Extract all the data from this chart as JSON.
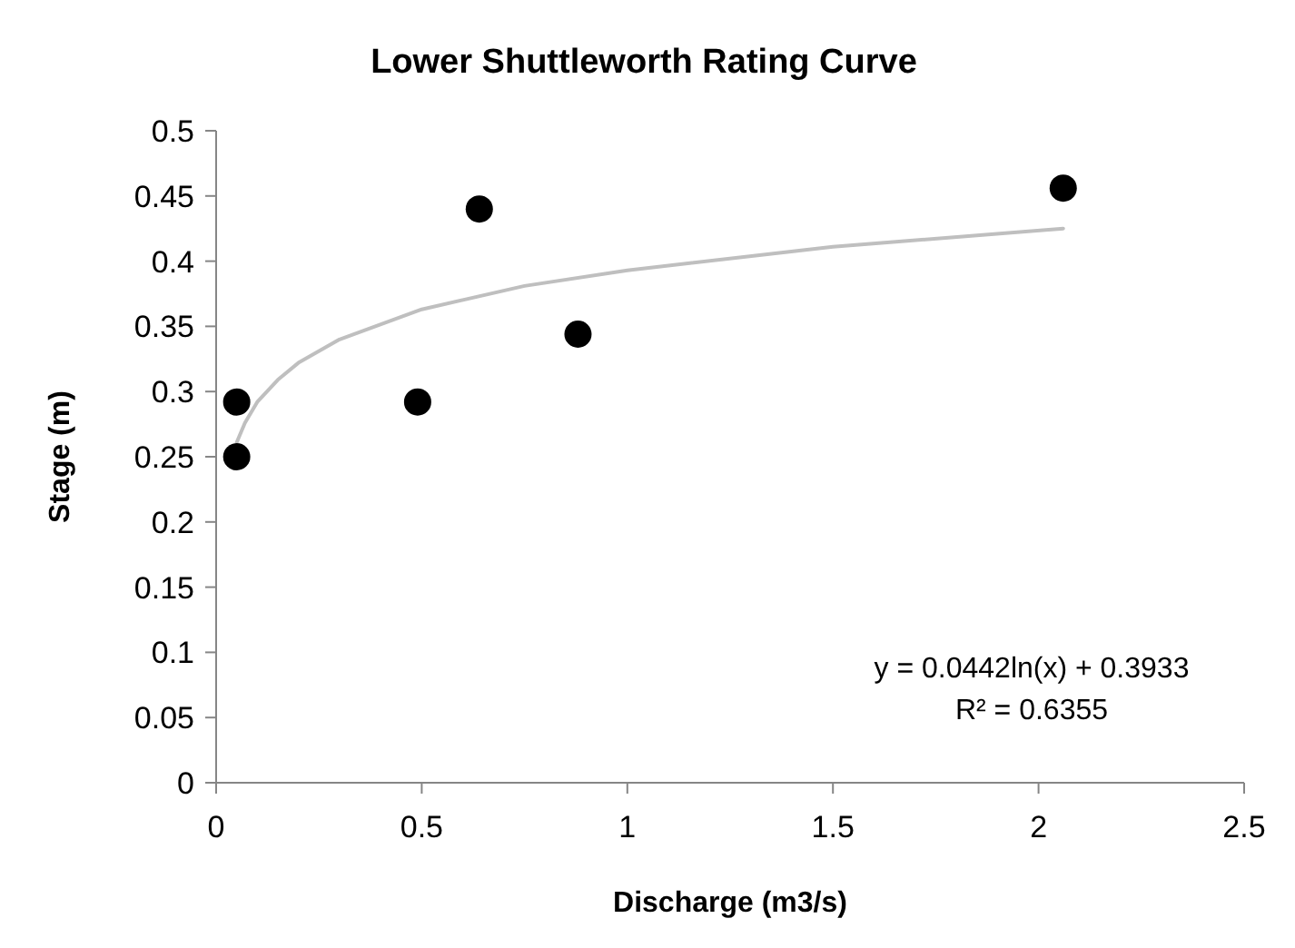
{
  "chart_data": {
    "type": "scatter",
    "title": "Lower Shuttleworth Rating Curve",
    "xlabel": "Discharge (m3/s)",
    "ylabel": "Stage (m)",
    "xlim": [
      0,
      2.5
    ],
    "xticks": [
      0,
      0.5,
      1,
      1.5,
      2,
      2.5
    ],
    "ylim": [
      0,
      0.5
    ],
    "yticks": [
      0,
      0.05,
      0.1,
      0.15,
      0.2,
      0.25,
      0.3,
      0.35,
      0.4,
      0.45,
      0.5
    ],
    "grid": false,
    "marker": "circle",
    "series": [
      {
        "color": "#000000",
        "x": [
          0.05,
          0.05,
          0.49,
          0.64,
          0.88,
          2.06
        ],
        "values": [
          0.292,
          0.25,
          0.292,
          0.44,
          0.344,
          0.456
        ]
      },
      {
        "type": "line",
        "color": "#bfbfbf",
        "marker": "none",
        "x": [
          0.05,
          0.07,
          0.1,
          0.15,
          0.2,
          0.3,
          0.5,
          0.75,
          1,
          1.5,
          2.06
        ],
        "values": [
          0.261,
          0.276,
          0.292,
          0.309,
          0.322,
          0.34,
          0.363,
          0.381,
          0.393,
          0.411,
          0.425
        ]
      }
    ],
    "annotations": [
      "y = 0.0442ln(x) + 0.3933",
      "R² = 0.6355"
    ]
  }
}
